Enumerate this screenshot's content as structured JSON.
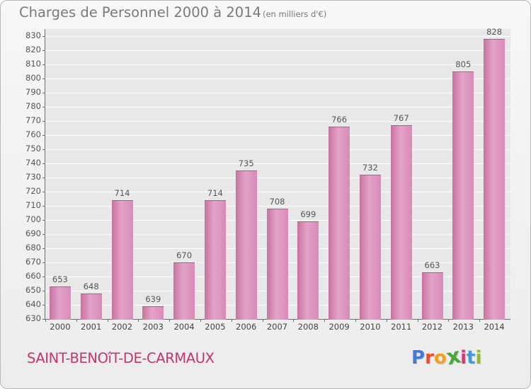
{
  "header": {
    "title": "Charges de Personnel 2000 à 2014",
    "unit": "(en milliers d'€)"
  },
  "footer": {
    "town": "SAINT-BENOîT-DE-CARMAUX",
    "logo_letters": [
      "P",
      "r",
      "o",
      "x",
      "i",
      "t",
      "i"
    ],
    "logo_colors": [
      "#3f7ad8",
      "#e74e2d",
      "#f2a020",
      "#49a63c",
      "#d53878",
      "#3f9bd8",
      "#8fbe2d"
    ]
  },
  "chart_data": {
    "type": "bar",
    "title": "Charges de Personnel 2000 à 2014",
    "subtitle": "(en milliers d'€)",
    "categories": [
      "2000",
      "2001",
      "2002",
      "2003",
      "2004",
      "2005",
      "2006",
      "2007",
      "2008",
      "2009",
      "2010",
      "2011",
      "2012",
      "2013",
      "2014"
    ],
    "values": [
      653,
      648,
      714,
      639,
      670,
      714,
      735,
      708,
      699,
      766,
      732,
      767,
      663,
      805,
      828
    ],
    "ylim": [
      630,
      835
    ],
    "yticks": [
      630,
      640,
      650,
      660,
      670,
      680,
      690,
      700,
      710,
      720,
      730,
      740,
      750,
      760,
      770,
      780,
      790,
      800,
      810,
      820,
      830
    ],
    "grid": true,
    "legend": "none",
    "bar_color": "#d98bb9"
  }
}
